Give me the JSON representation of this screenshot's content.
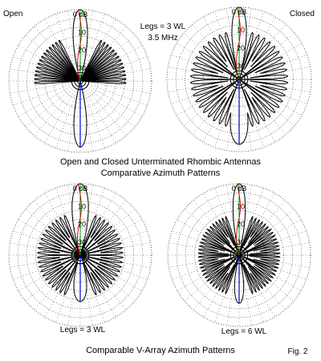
{
  "figure_number": "Fig. 2",
  "colors": {
    "grid": "#333333",
    "pattern": "#000000",
    "red_trace": "#cc0000",
    "green_axis": "#009900",
    "blue_trace": "#0000cc"
  },
  "captions": {
    "top_line1": "Open and Closed Unterminated Rhombic Antennas",
    "top_line2": "Comparative Azimuth Patterns",
    "bottom": "Comparable V-Array Azimuth Patterns"
  },
  "chart_data": [
    {
      "type": "polar",
      "corner_label": "Open",
      "info_lines": [
        "Legs = 3 WL",
        "3.5 MHz"
      ],
      "ring_labels": [
        "0 dB",
        "10",
        "20",
        "30"
      ],
      "scale": {
        "min_db": -40,
        "max_db": 0,
        "rings": 8,
        "spokes": 36
      },
      "main_lobe": {
        "peak_db": 0,
        "half_width_deg": 7
      },
      "rear_lobe": {
        "peak_db": -3,
        "half_width_deg": 7
      },
      "minor_lobes": {
        "count": 12,
        "level_db": -14,
        "start_deg": 30,
        "end_deg": 90
      }
    },
    {
      "type": "polar",
      "corner_label": "Closed",
      "info_lines": [],
      "ring_labels": [
        "0 dB",
        "10",
        "20",
        "30"
      ],
      "scale": {
        "min_db": -40,
        "max_db": 0,
        "rings": 8,
        "spokes": 36
      },
      "main_lobe": {
        "peak_db": 0,
        "half_width_deg": 7
      },
      "rear_lobe": {
        "peak_db": -4,
        "half_width_deg": 10
      },
      "minor_lobes": {
        "count": 18,
        "level_db": -13,
        "start_deg": 20,
        "end_deg": 160
      }
    },
    {
      "type": "polar",
      "corner_label": "",
      "info_lines": [
        "Legs = 3 WL"
      ],
      "ring_labels": [
        "0 dB",
        "10",
        "20",
        "30"
      ],
      "scale": {
        "min_db": -40,
        "max_db": 0,
        "rings": 8,
        "spokes": 36
      },
      "main_lobe": {
        "peak_db": 0,
        "half_width_deg": 8
      },
      "rear_lobe": {
        "peak_db": -14,
        "half_width_deg": 12
      },
      "minor_lobes": {
        "count": 20,
        "level_db": -16,
        "start_deg": 25,
        "end_deg": 155
      }
    },
    {
      "type": "polar",
      "corner_label": "",
      "info_lines": [
        "Legs = 6 WL"
      ],
      "ring_labels": [
        "0 dB",
        "10",
        "20",
        "30"
      ],
      "scale": {
        "min_db": -40,
        "max_db": 0,
        "rings": 8,
        "spokes": 36
      },
      "main_lobe": {
        "peak_db": 0,
        "half_width_deg": 6
      },
      "rear_lobe": {
        "peak_db": -13,
        "half_width_deg": 8
      },
      "minor_lobes": {
        "count": 26,
        "level_db": -17,
        "start_deg": 22,
        "end_deg": 158
      }
    }
  ]
}
